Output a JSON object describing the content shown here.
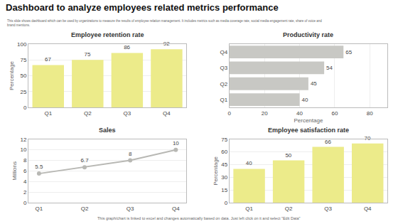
{
  "title": "Dashboard to analyze employees related metrics performance",
  "subtitle": "This slide shows dashboard which can be used by organizations to measure the results of employee relation management. It includes metrics such as media coverage rate, social media engagement rate, share of voice and\nbrand mentions.",
  "annotations": [
    "This graph/chart is linked to excel and changes automatically based on data. Just left click on it and select \"Edit Data\""
  ],
  "chart_data": [
    {
      "type": "bar",
      "title": "Employee retention rate",
      "categories": [
        "Q1",
        "Q2",
        "Q3",
        "Q4"
      ],
      "values": [
        67,
        75,
        86,
        92
      ],
      "color": "#eceb8a",
      "ylabel": "Percentage",
      "ylim": [
        0,
        100
      ],
      "yticks": [
        0,
        25,
        50,
        75,
        100
      ],
      "grid": true,
      "data_labels": true
    },
    {
      "type": "bar",
      "title": "Productivity rate",
      "orientation": "horizontal",
      "categories": [
        "Q1",
        "Q2",
        "Q3",
        "Q4"
      ],
      "values": [
        40,
        45,
        54,
        65
      ],
      "color": "#c8c8c4",
      "xlabel": "Percentage",
      "xlim": [
        0,
        90
      ],
      "xticks": [
        0,
        20,
        40,
        60,
        80
      ],
      "grid": true,
      "data_labels": true
    },
    {
      "type": "line",
      "title": "Sales",
      "categories": [
        "Q1",
        "Q2",
        "Q3",
        "Q4"
      ],
      "values": [
        5.5,
        6.7,
        8,
        10
      ],
      "color": "#b8b8b4",
      "marker": "circle",
      "ylabel": "Millions",
      "ylim": [
        0,
        12
      ],
      "yticks": [
        0,
        2,
        4,
        6,
        8,
        10,
        12
      ],
      "grid": true,
      "data_labels": true
    },
    {
      "type": "bar",
      "title": "Employee satisfaction rate",
      "categories": [
        "Q1",
        "Q2",
        "Q3",
        "Q4"
      ],
      "values": [
        40,
        50,
        66,
        70
      ],
      "color": "#eceb8a",
      "ylabel": "Percentage",
      "ylim": [
        0,
        75
      ],
      "yticks": [
        0,
        15,
        30,
        45,
        60,
        75
      ],
      "grid": true,
      "data_labels": true
    }
  ]
}
